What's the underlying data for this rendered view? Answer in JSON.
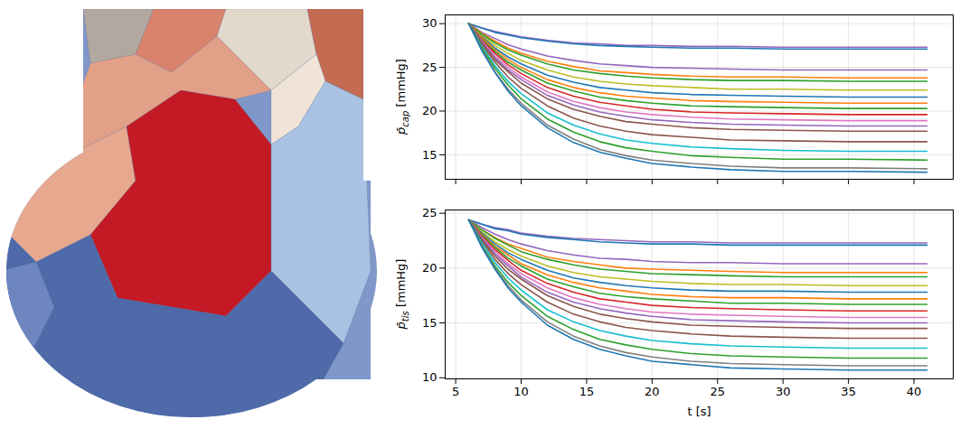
{
  "chart_data": [
    {
      "type": "line",
      "y_label": "p̄cap [mmHg]",
      "grid": true,
      "tick_labels": "y",
      "x": [
        6,
        7,
        8,
        9,
        10,
        12,
        14,
        16,
        18,
        20,
        23,
        26,
        30,
        35,
        41
      ],
      "xlim": [
        4.2,
        43
      ],
      "xticks": [
        5,
        10,
        15,
        20,
        25,
        30,
        35,
        40
      ],
      "ylim": [
        12.2,
        31
      ],
      "yticks": [
        15,
        20,
        25,
        30
      ],
      "series": [
        {
          "color": "#9467bd",
          "values": [
            30.0,
            29.5,
            29.1,
            28.8,
            28.5,
            28.1,
            27.8,
            27.7,
            27.5,
            27.5,
            27.4,
            27.4,
            27.3,
            27.3,
            27.3
          ]
        },
        {
          "color": "#1f77b4",
          "values": [
            30.0,
            29.5,
            29.0,
            28.7,
            28.4,
            28.0,
            27.7,
            27.5,
            27.4,
            27.3,
            27.2,
            27.2,
            27.1,
            27.1,
            27.1
          ]
        },
        {
          "color": "#9467bd",
          "values": [
            30.0,
            29.0,
            28.3,
            27.6,
            27.1,
            26.3,
            25.8,
            25.4,
            25.2,
            25.0,
            24.9,
            24.8,
            24.7,
            24.7,
            24.7
          ]
        },
        {
          "color": "#ff7f0e",
          "values": [
            30.0,
            28.9,
            28.0,
            27.2,
            26.6,
            25.7,
            25.1,
            24.6,
            24.4,
            24.2,
            24.0,
            23.9,
            23.9,
            23.8,
            23.8
          ]
        },
        {
          "color": "#2ca02c",
          "values": [
            30.0,
            28.8,
            27.8,
            27.0,
            26.4,
            25.4,
            24.7,
            24.3,
            24.0,
            23.8,
            23.6,
            23.5,
            23.5,
            23.4,
            23.4
          ]
        },
        {
          "color": "#bcbd22",
          "values": [
            30.0,
            28.6,
            27.5,
            26.6,
            25.8,
            24.7,
            23.9,
            23.4,
            23.1,
            22.9,
            22.7,
            22.5,
            22.5,
            22.4,
            22.4
          ]
        },
        {
          "color": "#1f77b4",
          "values": [
            30.0,
            28.5,
            27.2,
            26.2,
            25.4,
            24.1,
            23.3,
            22.7,
            22.4,
            22.1,
            21.9,
            21.8,
            21.7,
            21.6,
            21.6
          ]
        },
        {
          "color": "#ff7f0e",
          "values": [
            30.0,
            28.4,
            27.0,
            25.9,
            25.0,
            23.6,
            22.7,
            22.1,
            21.7,
            21.5,
            21.2,
            21.1,
            21.0,
            20.9,
            20.9
          ]
        },
        {
          "color": "#2ca02c",
          "values": [
            30.0,
            28.2,
            26.8,
            25.6,
            24.7,
            23.2,
            22.3,
            21.6,
            21.2,
            20.9,
            20.6,
            20.5,
            20.4,
            20.3,
            20.3
          ]
        },
        {
          "color": "#d62728",
          "values": [
            30.0,
            28.1,
            26.6,
            25.3,
            24.3,
            22.7,
            21.7,
            21.0,
            20.6,
            20.2,
            19.9,
            19.8,
            19.7,
            19.6,
            19.6
          ]
        },
        {
          "color": "#e377c2",
          "values": [
            30.0,
            28.0,
            26.3,
            25.0,
            23.9,
            22.2,
            21.1,
            20.4,
            19.9,
            19.6,
            19.3,
            19.1,
            19.0,
            18.9,
            18.9
          ]
        },
        {
          "color": "#9467bd",
          "values": [
            30.0,
            27.9,
            26.1,
            24.7,
            23.6,
            21.8,
            20.7,
            19.9,
            19.4,
            19.0,
            18.7,
            18.5,
            18.4,
            18.3,
            18.3
          ]
        },
        {
          "color": "#8c564b",
          "values": [
            30.0,
            27.8,
            25.9,
            24.5,
            23.2,
            21.4,
            20.2,
            19.4,
            18.8,
            18.5,
            18.1,
            17.9,
            17.8,
            17.7,
            17.7
          ]
        },
        {
          "color": "#8c564b",
          "values": [
            30.0,
            27.6,
            25.6,
            23.9,
            22.6,
            20.6,
            19.2,
            18.3,
            17.7,
            17.3,
            17.0,
            16.7,
            16.6,
            16.5,
            16.5
          ]
        },
        {
          "color": "#17becf",
          "values": [
            30.0,
            27.4,
            25.2,
            23.4,
            22.0,
            19.8,
            18.4,
            17.4,
            16.7,
            16.3,
            15.9,
            15.7,
            15.5,
            15.4,
            15.4
          ]
        },
        {
          "color": "#2ca02c",
          "values": [
            30.0,
            27.2,
            24.9,
            23.0,
            21.4,
            19.1,
            17.6,
            16.5,
            15.8,
            15.4,
            14.9,
            14.7,
            14.5,
            14.5,
            14.4
          ]
        },
        {
          "color": "#7f7f7f",
          "values": [
            30.0,
            27.0,
            24.5,
            22.5,
            20.9,
            18.4,
            16.8,
            15.6,
            14.9,
            14.4,
            14.0,
            13.7,
            13.5,
            13.5,
            13.4
          ]
        },
        {
          "color": "#1f77b4",
          "values": [
            30.0,
            26.9,
            24.4,
            22.3,
            20.6,
            18.1,
            16.4,
            15.3,
            14.6,
            14.0,
            13.6,
            13.3,
            13.1,
            13.1,
            13.0
          ]
        }
      ]
    },
    {
      "type": "line",
      "y_label": "p̄tis [mmHg]",
      "x_label": "t [s]",
      "grid": true,
      "x": [
        6,
        7,
        8,
        9,
        10,
        12,
        14,
        16,
        18,
        20,
        23,
        26,
        30,
        35,
        41
      ],
      "xlim": [
        4.2,
        43
      ],
      "xticks": [
        5,
        10,
        15,
        20,
        25,
        30,
        35,
        40
      ],
      "ylim": [
        9.9,
        25.3
      ],
      "yticks": [
        10,
        15,
        20,
        25
      ],
      "series": [
        {
          "color": "#9467bd",
          "values": [
            24.4,
            24.0,
            23.7,
            23.5,
            23.2,
            22.9,
            22.7,
            22.6,
            22.5,
            22.4,
            22.4,
            22.3,
            22.3,
            22.3,
            22.3
          ]
        },
        {
          "color": "#1f77b4",
          "values": [
            24.4,
            24.0,
            23.6,
            23.4,
            23.1,
            22.8,
            22.6,
            22.4,
            22.3,
            22.2,
            22.2,
            22.1,
            22.1,
            22.1,
            22.1
          ]
        },
        {
          "color": "#9467bd",
          "values": [
            24.4,
            23.7,
            23.1,
            22.6,
            22.2,
            21.6,
            21.2,
            20.9,
            20.8,
            20.6,
            20.5,
            20.5,
            20.4,
            20.4,
            20.4
          ]
        },
        {
          "color": "#ff7f0e",
          "values": [
            24.4,
            23.5,
            22.8,
            22.2,
            21.8,
            21.0,
            20.6,
            20.3,
            20.0,
            19.9,
            19.8,
            19.7,
            19.6,
            19.6,
            19.6
          ]
        },
        {
          "color": "#2ca02c",
          "values": [
            24.4,
            23.5,
            22.7,
            22.1,
            21.5,
            20.8,
            20.3,
            19.9,
            19.7,
            19.5,
            19.4,
            19.3,
            19.2,
            19.2,
            19.2
          ]
        },
        {
          "color": "#bcbd22",
          "values": [
            24.4,
            23.3,
            22.4,
            21.7,
            21.1,
            20.2,
            19.6,
            19.2,
            19.0,
            18.8,
            18.6,
            18.5,
            18.5,
            18.4,
            18.4
          ]
        },
        {
          "color": "#1f77b4",
          "values": [
            24.4,
            23.2,
            22.2,
            21.4,
            20.8,
            19.8,
            19.1,
            18.7,
            18.4,
            18.2,
            18.0,
            17.9,
            17.9,
            17.8,
            17.8
          ]
        },
        {
          "color": "#ff7f0e",
          "values": [
            24.4,
            23.1,
            22.0,
            21.2,
            20.4,
            19.4,
            18.7,
            18.2,
            17.9,
            17.6,
            17.4,
            17.3,
            17.3,
            17.2,
            17.2
          ]
        },
        {
          "color": "#2ca02c",
          "values": [
            24.4,
            23.0,
            21.9,
            20.9,
            20.2,
            19.0,
            18.3,
            17.7,
            17.4,
            17.2,
            17.0,
            16.8,
            16.8,
            16.7,
            16.7
          ]
        },
        {
          "color": "#d62728",
          "values": [
            24.4,
            22.9,
            21.7,
            20.7,
            19.8,
            18.6,
            17.8,
            17.2,
            16.9,
            16.6,
            16.4,
            16.3,
            16.2,
            16.1,
            16.1
          ]
        },
        {
          "color": "#e377c2",
          "values": [
            24.4,
            22.8,
            21.5,
            20.4,
            19.5,
            18.2,
            17.3,
            16.7,
            16.3,
            16.0,
            15.8,
            15.7,
            15.6,
            15.5,
            15.5
          ]
        },
        {
          "color": "#9467bd",
          "values": [
            24.4,
            22.7,
            21.3,
            20.2,
            19.2,
            17.8,
            16.9,
            16.3,
            15.9,
            15.6,
            15.3,
            15.2,
            15.1,
            15.0,
            15.0
          ]
        },
        {
          "color": "#8c564b",
          "values": [
            24.4,
            22.6,
            21.1,
            19.9,
            19.0,
            17.5,
            16.5,
            15.8,
            15.4,
            15.1,
            14.8,
            14.7,
            14.6,
            14.5,
            14.5
          ]
        },
        {
          "color": "#8c564b",
          "values": [
            24.4,
            22.5,
            20.8,
            19.5,
            18.5,
            16.9,
            15.8,
            15.1,
            14.6,
            14.3,
            14.0,
            13.8,
            13.7,
            13.6,
            13.6
          ]
        },
        {
          "color": "#17becf",
          "values": [
            24.4,
            22.3,
            20.5,
            19.1,
            18.0,
            16.2,
            15.1,
            14.3,
            13.8,
            13.4,
            13.1,
            12.9,
            12.8,
            12.7,
            12.7
          ]
        },
        {
          "color": "#2ca02c",
          "values": [
            24.4,
            22.1,
            20.2,
            18.7,
            17.5,
            15.6,
            14.4,
            13.5,
            13.0,
            12.6,
            12.2,
            12.0,
            11.9,
            11.8,
            11.8
          ]
        },
        {
          "color": "#7f7f7f",
          "values": [
            24.4,
            22.0,
            20.0,
            18.4,
            17.1,
            15.1,
            13.8,
            12.9,
            12.3,
            11.9,
            11.5,
            11.3,
            11.2,
            11.1,
            11.1
          ]
        },
        {
          "color": "#1f77b4",
          "values": [
            24.4,
            21.9,
            19.9,
            18.2,
            16.9,
            14.8,
            13.5,
            12.6,
            12.0,
            11.5,
            11.2,
            10.9,
            10.8,
            10.7,
            10.7
          ]
        }
      ]
    }
  ]
}
